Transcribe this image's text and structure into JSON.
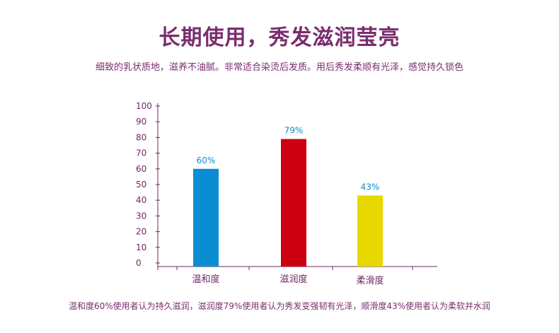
{
  "header": {
    "title": "长期使用，秀发滋润莹亮",
    "subtitle": "细致的乳状质地，滋养不油腻。非常适合染烫后发质。用后秀发柔顺有光泽，感觉持久锁色"
  },
  "footer": {
    "text": "温和度60%使用者认为持久滋润，滋润度79%使用者认为秀发变强韧有光泽，顺滑度43%使用者认为柔软并水润"
  },
  "chart_data": {
    "type": "bar",
    "categories": [
      "温和度",
      "滋润度",
      "柔滑度"
    ],
    "values": [
      60,
      79,
      43
    ],
    "data_labels": [
      "60%",
      "79%",
      "43%"
    ],
    "colors": [
      "#0b8ed1",
      "#cc0011",
      "#e8d800"
    ],
    "y_ticks": [
      0,
      10,
      20,
      30,
      40,
      50,
      60,
      70,
      80,
      90,
      100
    ],
    "ylim": [
      0,
      100
    ],
    "grid": false,
    "axis_color": "#6b2a62",
    "label_color": "#0b8ed1"
  }
}
